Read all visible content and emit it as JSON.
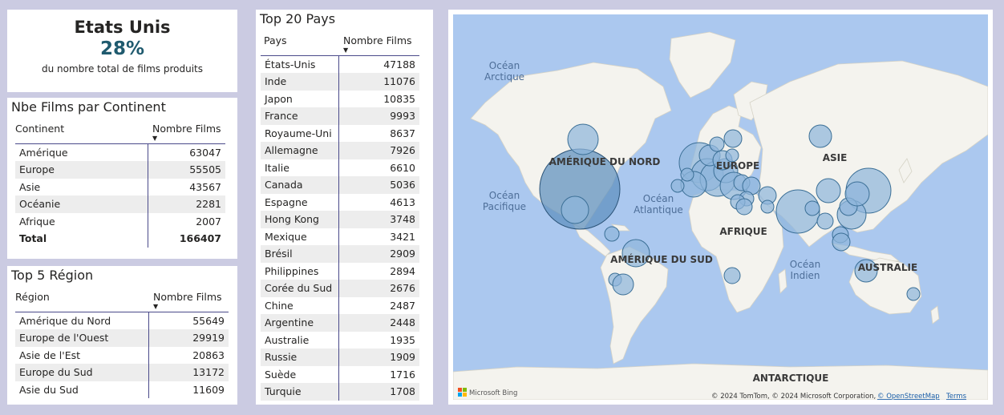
{
  "kpi": {
    "country": "Etats Unis",
    "percent": "28%",
    "subtitle": "du nombre total de films produits"
  },
  "continent_table": {
    "title": "Nbe Films par Continent",
    "col1": "Continent",
    "col2": "Nombre Films",
    "rows": [
      {
        "name": "Amérique",
        "value": "63047"
      },
      {
        "name": "Europe",
        "value": "55505"
      },
      {
        "name": "Asie",
        "value": "43567"
      },
      {
        "name": "Océanie",
        "value": "2281"
      },
      {
        "name": "Afrique",
        "value": "2007"
      }
    ],
    "total_label": "Total",
    "total_value": "166407"
  },
  "region_table": {
    "title": "Top 5 Région",
    "col1": "Région",
    "col2": "Nombre Films",
    "rows": [
      {
        "name": "Amérique du Nord",
        "value": "55649"
      },
      {
        "name": "Europe de l'Ouest",
        "value": "29919"
      },
      {
        "name": "Asie de l'Est",
        "value": "20863"
      },
      {
        "name": "Europe du Sud",
        "value": "13172"
      },
      {
        "name": "Asie du Sud",
        "value": "11609"
      }
    ]
  },
  "country_table": {
    "title": "Top 20 Pays",
    "col1": "Pays",
    "col2": "Nombre Films",
    "rows": [
      {
        "name": "États-Unis",
        "value": "47188"
      },
      {
        "name": "Inde",
        "value": "11076"
      },
      {
        "name": "Japon",
        "value": "10835"
      },
      {
        "name": "France",
        "value": "9993"
      },
      {
        "name": "Royaume-Uni",
        "value": "8637"
      },
      {
        "name": "Allemagne",
        "value": "7926"
      },
      {
        "name": "Italie",
        "value": "6610"
      },
      {
        "name": "Canada",
        "value": "5036"
      },
      {
        "name": "Espagne",
        "value": "4613"
      },
      {
        "name": "Hong Kong",
        "value": "3748"
      },
      {
        "name": "Mexique",
        "value": "3421"
      },
      {
        "name": "Brésil",
        "value": "2909"
      },
      {
        "name": "Philippines",
        "value": "2894"
      },
      {
        "name": "Corée du Sud",
        "value": "2676"
      },
      {
        "name": "Chine",
        "value": "2487"
      },
      {
        "name": "Argentine",
        "value": "2448"
      },
      {
        "name": "Australie",
        "value": "1935"
      },
      {
        "name": "Russie",
        "value": "1909"
      },
      {
        "name": "Suède",
        "value": "1716"
      },
      {
        "name": "Turquie",
        "value": "1708"
      }
    ]
  },
  "map": {
    "ocean_arctic_1": "Océan",
    "ocean_arctic_2": "Arctique",
    "ocean_pacific_1": "Océan",
    "ocean_pacific_2": "Pacifique",
    "ocean_atlantic_1": "Océan",
    "ocean_atlantic_2": "Atlantique",
    "ocean_indian_1": "Océan",
    "ocean_indian_2": "Indien",
    "north_america": "AMÉRIQUE DU NORD",
    "europe": "EUROPE",
    "asia": "ASIE",
    "africa": "AFRIQUE",
    "south_america": "AMÉRIQUE DU SUD",
    "australia": "AUSTRALIE",
    "antarctica": "ANTARCTIQUE",
    "brand": "Microsoft Bing",
    "copyright": "© 2024 TomTom, © 2024 Microsoft Corporation,",
    "osm": "© OpenStreetMap",
    "terms": "Terms",
    "colors": {
      "ocean": "#abc8ef",
      "land": "#f4f3ee",
      "bubble_fill": "#8fb6db",
      "bubble_stroke": "#3b6f96"
    }
  }
}
